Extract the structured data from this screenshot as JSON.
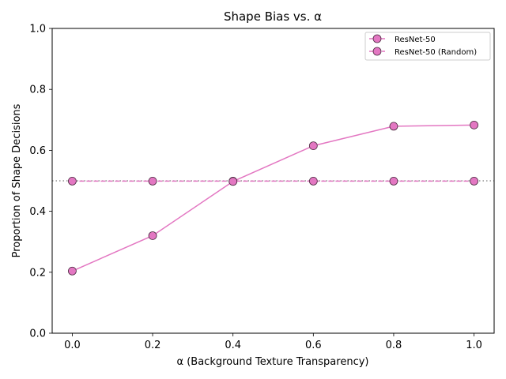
{
  "chart_data": {
    "type": "line",
    "title": "Shape Bias vs. α",
    "xlabel": "α (Background Texture Transparency)",
    "ylabel": "Proportion of Shape Decisions",
    "xlim": [
      -0.05,
      1.05
    ],
    "ylim": [
      0.0,
      1.0
    ],
    "x_ticks": [
      "0.0",
      "0.2",
      "0.4",
      "0.6",
      "0.8",
      "1.0"
    ],
    "y_ticks": [
      "0.0",
      "0.2",
      "0.4",
      "0.6",
      "0.8",
      "1.0"
    ],
    "x": [
      0.0,
      0.2,
      0.4,
      0.6,
      0.8,
      1.0
    ],
    "series": [
      {
        "name": "ResNet-50",
        "values": [
          0.204,
          0.32,
          0.498,
          0.615,
          0.679,
          0.683
        ],
        "color": "#e377c2",
        "linestyle": "solid",
        "marker": "circle"
      },
      {
        "name": "ResNet-50 (Random)",
        "values": [
          0.499,
          0.499,
          0.499,
          0.499,
          0.499,
          0.499
        ],
        "color": "#e377c2",
        "linestyle": "dashed",
        "marker": "circle"
      }
    ],
    "reference_line": {
      "y": 0.5,
      "color": "#7f7f7f",
      "linestyle": "dotted"
    },
    "grid": false,
    "legend_position": "top-right"
  }
}
